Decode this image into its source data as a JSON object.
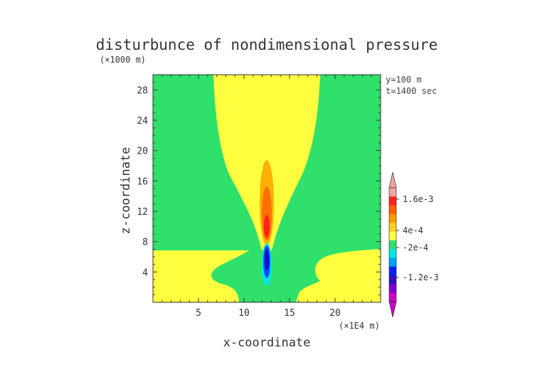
{
  "chart_data": {
    "type": "heatmap",
    "title": "disturbunce of nondimensional pressure",
    "z_unit": "(×1000 m)",
    "x_unit": "(×1E4 m)",
    "xlabel": "x-coordinate",
    "ylabel": "z-coordinate",
    "annotations": [
      "y=100 m",
      "t=1400 sec"
    ],
    "xlim": [
      0,
      25
    ],
    "ylim": [
      0,
      30
    ],
    "x_ticks": [
      5,
      10,
      15,
      20
    ],
    "x_tick_labels": [
      "5",
      "10",
      "15",
      "20"
    ],
    "y_ticks": [
      4,
      8,
      12,
      16,
      20,
      24,
      28
    ],
    "y_tick_labels": [
      "4",
      "8",
      "12",
      "16",
      "20",
      "24",
      "28"
    ],
    "background_level": "near zero",
    "colorbar": {
      "labels": [
        "1.6e-3",
        "4e-4",
        "-2e-4",
        "-1.2e-3"
      ],
      "colors_top_to_bottom": [
        "#f4a4a0",
        "#ff2020",
        "#ff6000",
        "#ff9a00",
        "#ffd020",
        "#ffff40",
        "#30e070",
        "#00e8e8",
        "#00a0ff",
        "#0020ff",
        "#3010c0",
        "#8000d0",
        "#d000c8"
      ]
    },
    "regions": [
      {
        "name": "positive plume",
        "level": "0 to 4e-4",
        "color": "#ffff40"
      },
      {
        "name": "core positive",
        "level": "4e-4 to 1.6e-3",
        "color": "#ff9a00"
      },
      {
        "name": "core negative",
        "level": "below -2e-4",
        "color": "#0020ff"
      }
    ]
  }
}
